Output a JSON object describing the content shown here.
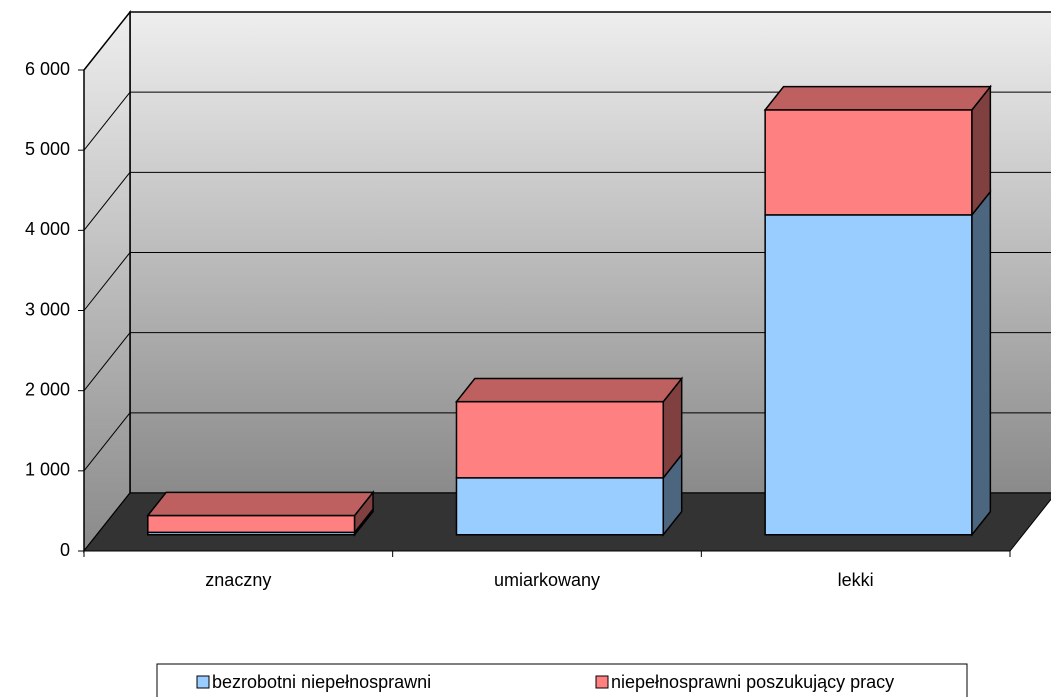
{
  "chart_data": {
    "type": "bar3d_stacked",
    "categories": [
      "znaczny",
      "umiarkowany",
      "lekki"
    ],
    "series": [
      {
        "name": "bezrobotni niepełnosprawni",
        "color": "#99ccff",
        "values": [
          30,
          710,
          3990
        ]
      },
      {
        "name": "niepełnosprawni poszukujący pracy",
        "color": "#ff8080",
        "values": [
          210,
          950,
          1310
        ]
      }
    ],
    "ylim": [
      0,
      6000
    ],
    "yticks": [
      0,
      {
        "value": 1000,
        "label": "1 000"
      },
      {
        "value": 2000,
        "label": "2 000"
      },
      {
        "value": 3000,
        "label": "3 000"
      },
      {
        "value": 4000,
        "label": "4 000"
      },
      {
        "value": 5000,
        "label": "5 000"
      },
      {
        "value": 6000,
        "label": "6 000"
      }
    ],
    "grid": true
  }
}
